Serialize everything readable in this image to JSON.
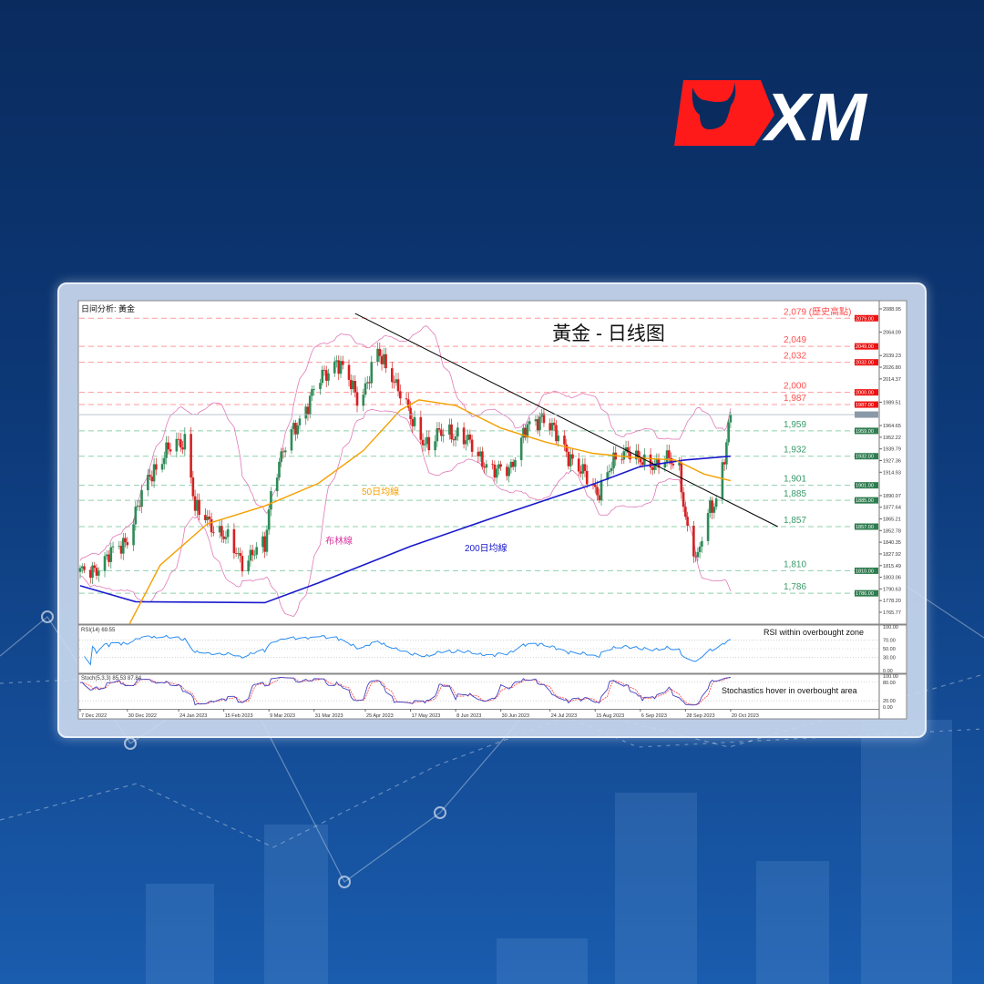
{
  "brand": {
    "logo_text": "XM",
    "colors": {
      "red": "#ff1a1a",
      "white": "#ffffff",
      "background": "#0a2b5e"
    }
  },
  "chart_data": {
    "type": "candlestick",
    "title": "黃金 - 日线图",
    "corner_label": "日间分析: 黃金",
    "x_tick_labels": [
      "7 Dec 2022",
      "30 Dec 2022",
      "24 Jan 2023",
      "15 Feb 2023",
      "9 Mar 2023",
      "31 Mar 2023",
      "25 Apr 2023",
      "17 May 2023",
      "8 Jun 2023",
      "30 Jun 2023",
      "24 Jul 2023",
      "15 Aug 2023",
      "6 Sep 2023",
      "28 Sep 2023",
      "20 Oct 2023"
    ],
    "x_tick_dates": [
      "2022-12-07",
      "2022-12-30",
      "2023-01-24",
      "2023-02-15",
      "2023-03-09",
      "2023-03-31",
      "2023-04-25",
      "2023-05-17",
      "2023-06-08",
      "2023-06-30",
      "2023-07-24",
      "2023-08-15",
      "2023-09-06",
      "2023-09-28",
      "2023-10-20"
    ],
    "y_range": [
      1765.77,
      2088.95
    ],
    "y_tick_labels": [
      "2088.95",
      "2064.09",
      "2039.23",
      "2026.80",
      "2014.37",
      "1989.51",
      "1964.65",
      "1952.22",
      "1939.79",
      "1927.36",
      "1914.93",
      "1890.07",
      "1877.64",
      "1865.21",
      "1852.78",
      "1840.35",
      "1827.92",
      "1815.49",
      "1803.06",
      "1790.63",
      "1778.20",
      "1765.77"
    ],
    "approx_close_path": [
      [
        "2022-12-07",
        1806
      ],
      [
        "2022-12-17",
        1816
      ],
      [
        "2022-12-30",
        1845
      ],
      [
        "2023-01-10",
        1913
      ],
      [
        "2023-01-19",
        1938
      ],
      [
        "2023-01-28",
        1952
      ],
      [
        "2023-02-01",
        1874
      ],
      [
        "2023-02-12",
        1855
      ],
      [
        "2023-02-24",
        1821
      ],
      [
        "2023-03-07",
        1836
      ],
      [
        "2023-03-11",
        1913
      ],
      [
        "2023-03-24",
        1972
      ],
      [
        "2023-04-02",
        2010
      ],
      [
        "2023-04-11",
        2035
      ],
      [
        "2023-04-22",
        1991
      ],
      [
        "2023-05-01",
        2040
      ],
      [
        "2023-05-08",
        2020
      ],
      [
        "2023-05-17",
        1972
      ],
      [
        "2023-05-26",
        1942
      ],
      [
        "2023-06-03",
        1962
      ],
      [
        "2023-06-17",
        1942
      ],
      [
        "2023-06-26",
        1913
      ],
      [
        "2023-07-05",
        1923
      ],
      [
        "2023-07-13",
        1962
      ],
      [
        "2023-07-20",
        1976
      ],
      [
        "2023-07-29",
        1947
      ],
      [
        "2023-08-09",
        1913
      ],
      [
        "2023-08-16",
        1894
      ],
      [
        "2023-08-22",
        1918
      ],
      [
        "2023-08-31",
        1942
      ],
      [
        "2023-09-09",
        1918
      ],
      [
        "2023-09-18",
        1933
      ],
      [
        "2023-09-25",
        1913
      ],
      [
        "2023-09-29",
        1855
      ],
      [
        "2023-10-04",
        1821
      ],
      [
        "2023-10-08",
        1865
      ],
      [
        "2023-10-13",
        1889
      ],
      [
        "2023-10-17",
        1933
      ],
      [
        "2023-10-20",
        1972
      ]
    ],
    "ma200": {
      "label": "200日均線",
      "color": "#1a1acc",
      "points": [
        [
          "2022-12-07",
          1794
        ],
        [
          "2023-01-03",
          1777
        ],
        [
          "2023-03-07",
          1776
        ],
        [
          "2023-04-02",
          1797
        ],
        [
          "2023-05-17",
          1836
        ],
        [
          "2023-07-01",
          1870
        ],
        [
          "2023-08-15",
          1903
        ],
        [
          "2023-09-06",
          1921
        ],
        [
          "2023-09-28",
          1928
        ],
        [
          "2023-10-20",
          1932
        ]
      ]
    },
    "ma50": {
      "label": "50日均線",
      "color": "#f5a000",
      "points": [
        [
          "2022-12-31",
          1753
        ],
        [
          "2023-01-15",
          1816
        ],
        [
          "2023-02-07",
          1860
        ],
        [
          "2023-03-07",
          1879
        ],
        [
          "2023-04-02",
          1903
        ],
        [
          "2023-04-24",
          1938
        ],
        [
          "2023-05-12",
          1981
        ],
        [
          "2023-05-21",
          1992
        ],
        [
          "2023-06-08",
          1986
        ],
        [
          "2023-06-30",
          1962
        ],
        [
          "2023-07-22",
          1947
        ],
        [
          "2023-08-14",
          1935
        ],
        [
          "2023-09-06",
          1930
        ],
        [
          "2023-09-23",
          1928
        ],
        [
          "2023-10-07",
          1913
        ],
        [
          "2023-10-20",
          1906
        ]
      ]
    },
    "bollinger": {
      "label": "布林線",
      "color": "#d63aa0",
      "period": 20,
      "stddev": 2
    },
    "trendline": {
      "color": "#000000",
      "points": [
        [
          "2023-04-20",
          2084
        ],
        [
          "2023-11-12",
          1857
        ]
      ]
    },
    "resistance_levels": [
      {
        "value": 2079,
        "label": "2,079 (歷史高點)",
        "tag": "2079.00"
      },
      {
        "value": 2049,
        "label": "2,049",
        "tag": "2049.00"
      },
      {
        "value": 2032,
        "label": "2,032",
        "tag": "2032.00"
      },
      {
        "value": 2000,
        "label": "2,000",
        "tag": "2000.00"
      },
      {
        "value": 1987,
        "label": "1,987",
        "tag": "1987.00"
      }
    ],
    "support_levels": [
      {
        "value": 1959,
        "label": "1,959",
        "tag": "1959.00"
      },
      {
        "value": 1932,
        "label": "1,932",
        "tag": "1932.00"
      },
      {
        "value": 1901,
        "label": "1,901",
        "tag": "1901.00"
      },
      {
        "value": 1885,
        "label": "1,885",
        "tag": "1885.00"
      },
      {
        "value": 1857,
        "label": "1,857",
        "tag": "1857.00"
      },
      {
        "value": 1810,
        "label": "1,810",
        "tag": "1810.00"
      },
      {
        "value": 1786,
        "label": "1,786",
        "tag": "1786.00"
      }
    ],
    "colors": {
      "up": "#2e8b57",
      "down": "#d62020",
      "resistance": "#ff5050",
      "support": "#3a9a6a"
    },
    "rsi": {
      "label": "RSI(14) 69.55",
      "value": 69.55,
      "period": 14,
      "range": [
        0,
        100
      ],
      "tick_labels": [
        "100.00",
        "70.00",
        "50.00",
        "30.00",
        "0.00"
      ],
      "tick_values": [
        100,
        70,
        50,
        30,
        0
      ],
      "color": "#2a8cf0",
      "annotation": "RSI within overbought zone"
    },
    "stochastic": {
      "label": "Stoch(5,3,3) 85.53 87.84",
      "k": 85.53,
      "d": 87.84,
      "range": [
        0,
        100
      ],
      "tick_labels": [
        "100.00",
        "80.00",
        "20.00",
        "0.00"
      ],
      "tick_values": [
        100,
        80,
        20,
        0
      ],
      "k_color": "#4040c0",
      "d_color": "#ff4040",
      "annotation": "Stochastics hover in overbought area"
    }
  }
}
